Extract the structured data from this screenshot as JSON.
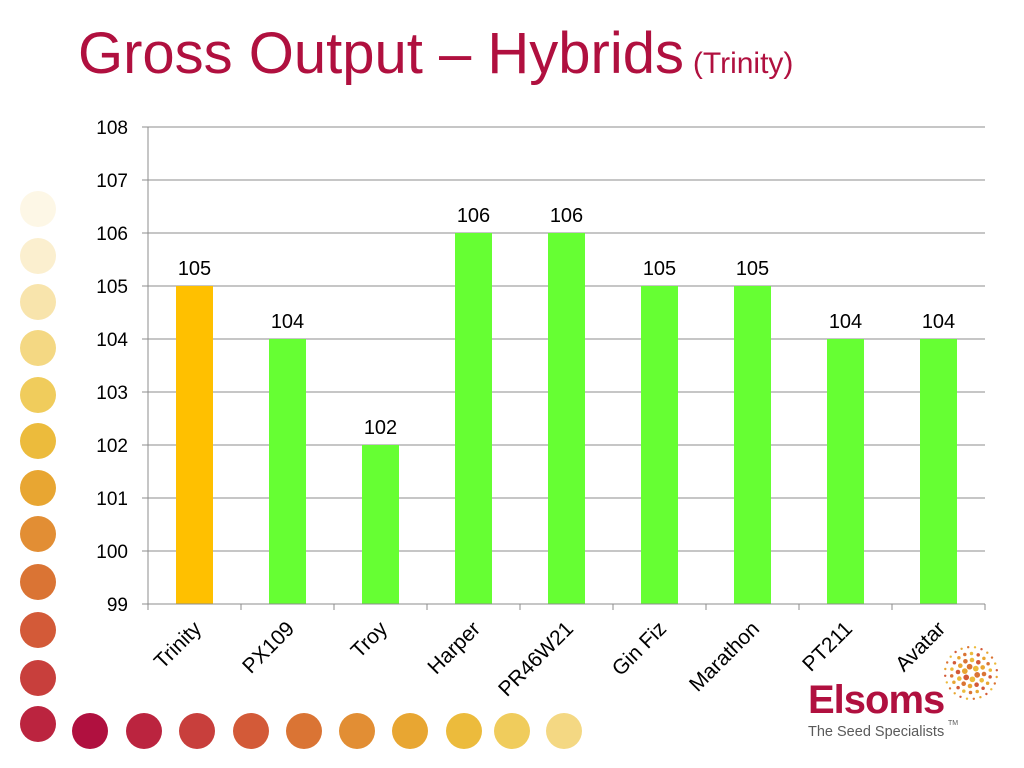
{
  "slide": {
    "title": "Gross Output – Hybrids",
    "subtitle": "(Trinity)"
  },
  "logo": {
    "name": "Elsoms",
    "tagline": "The Seed Specialists",
    "trademark": "TM"
  },
  "colors": {
    "title": "#b0103f",
    "highlight_bar": "#ffc000",
    "bar": "#66ff33",
    "gridline": "#8c8c8c"
  },
  "decoration": {
    "dot_colors": [
      "#fdf7e6",
      "#fbefcf",
      "#f8e4ac",
      "#f4d883",
      "#f0cc5c",
      "#ecbb3c",
      "#e8a632",
      "#e28e34",
      "#da7434",
      "#d35a38",
      "#c83f3c",
      "#bb243f",
      "#b0103f"
    ]
  },
  "chart_data": {
    "type": "bar",
    "categories": [
      "Trinity",
      "PX109",
      "Troy",
      "Harper",
      "PR46W21",
      "Gin Fiz",
      "Marathon",
      "PT211",
      "Avatar"
    ],
    "values": [
      105,
      104,
      102,
      106,
      106,
      105,
      105,
      104,
      104
    ],
    "data_labels": [
      "105",
      "104",
      "102",
      "106",
      "106",
      "105",
      "105",
      "104",
      "104"
    ],
    "highlight_index": 0,
    "ylim": [
      99,
      108
    ],
    "yticks": [
      99,
      100,
      101,
      102,
      103,
      104,
      105,
      106,
      107,
      108
    ],
    "title": "",
    "xlabel": "",
    "ylabel": "",
    "grid": true,
    "legend": "none"
  }
}
